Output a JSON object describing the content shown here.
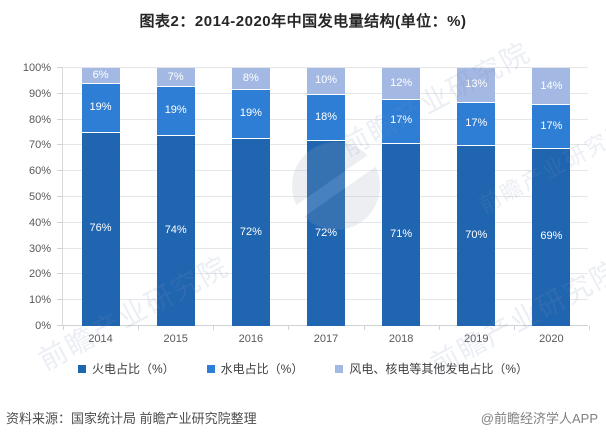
{
  "chart_data": {
    "type": "bar",
    "stacked": true,
    "title": "图表2：2014-2020年中国发电量结构(单位：%)",
    "categories": [
      "2014",
      "2015",
      "2016",
      "2017",
      "2018",
      "2019",
      "2020"
    ],
    "series": [
      {
        "name": "火电占比（%）",
        "color": "#2065b0",
        "values": [
          76,
          74,
          72,
          72,
          71,
          70,
          69
        ]
      },
      {
        "name": "水电占比（%）",
        "color": "#2e7ed6",
        "values": [
          19,
          19,
          19,
          18,
          17,
          17,
          17
        ]
      },
      {
        "name": "风电、核电等其他发电占比（%）",
        "color": "#a3b8e2",
        "values": [
          6,
          7,
          8,
          10,
          12,
          13,
          14
        ]
      }
    ],
    "xlabel": "",
    "ylabel": "",
    "ylim": [
      0,
      100
    ],
    "yticks": [
      "0%",
      "10%",
      "20%",
      "30%",
      "40%",
      "50%",
      "60%",
      "70%",
      "80%",
      "90%",
      "100%"
    ],
    "grid": true,
    "legend_position": "bottom",
    "value_labels": true
  },
  "watermark": {
    "text": "前瞻产业研究院"
  },
  "footer": {
    "source": "资料来源：国家统计局 前瞻产业研究院整理",
    "credit": "@前瞻经济学人APP"
  },
  "colors": {
    "grid": "#e5e6e9",
    "axis": "#cfd2d6",
    "title_text": "#262626",
    "tick_text": "#595959",
    "legend_text": "#404040"
  }
}
